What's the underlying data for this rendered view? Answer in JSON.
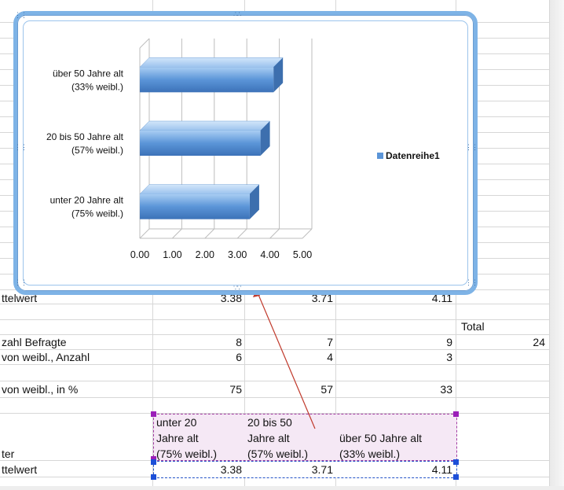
{
  "spreadsheet": {
    "rows": [
      {
        "label": "ttelwert",
        "values": [
          "3.38",
          "3.71",
          "4.11"
        ]
      },
      {
        "total_header": "Total"
      },
      {
        "label": "zahl Befragte",
        "values": [
          "8",
          "7",
          "9"
        ],
        "total": "24"
      },
      {
        "label": "von weibl., Anzahl",
        "values": [
          "6",
          "4",
          "3"
        ]
      },
      {
        "label": "von weibl., in %",
        "values": [
          "75",
          "57",
          "33"
        ]
      }
    ],
    "header_row": {
      "label": "ter",
      "cells": [
        "unter 20 Jahre alt (75% weibl.)",
        "20 bis 50 Jahre alt (57% weibl.)",
        "über 50 Jahre alt (33% weibl.)"
      ],
      "cell_lines": [
        [
          "unter 20",
          "Jahre alt",
          "(75% weibl.)"
        ],
        [
          "20 bis 50",
          "Jahre alt",
          "(57% weibl.)"
        ],
        [
          "",
          "über 50 Jahre alt",
          "(33% weibl.)"
        ]
      ]
    },
    "selected_row": {
      "label": "ttelwert",
      "values": [
        "3.38",
        "3.71",
        "4.11"
      ]
    }
  },
  "chart_data": {
    "type": "bar",
    "orientation": "horizontal",
    "categories": [
      "unter 20 Jahre alt (75% weibl.)",
      "20 bis 50 Jahre alt (57% weibl.)",
      "über 50 Jahre alt (33% weibl.)"
    ],
    "category_lines": [
      [
        "unter 20 Jahre alt",
        "(75% weibl.)"
      ],
      [
        "20 bis 50 Jahre alt",
        "(57% weibl.)"
      ],
      [
        "über 50 Jahre alt",
        "(33% weibl.)"
      ]
    ],
    "series": [
      {
        "name": "Datenreihe1",
        "values": [
          3.38,
          3.71,
          4.11
        ]
      }
    ],
    "x_ticks": [
      "0.00",
      "1.00",
      "2.00",
      "3.00",
      "4.00",
      "5.00"
    ],
    "xlim": [
      0,
      5
    ],
    "grid": true,
    "legend_position": "right",
    "bar_color": "#5b95d8",
    "style": "3d"
  }
}
